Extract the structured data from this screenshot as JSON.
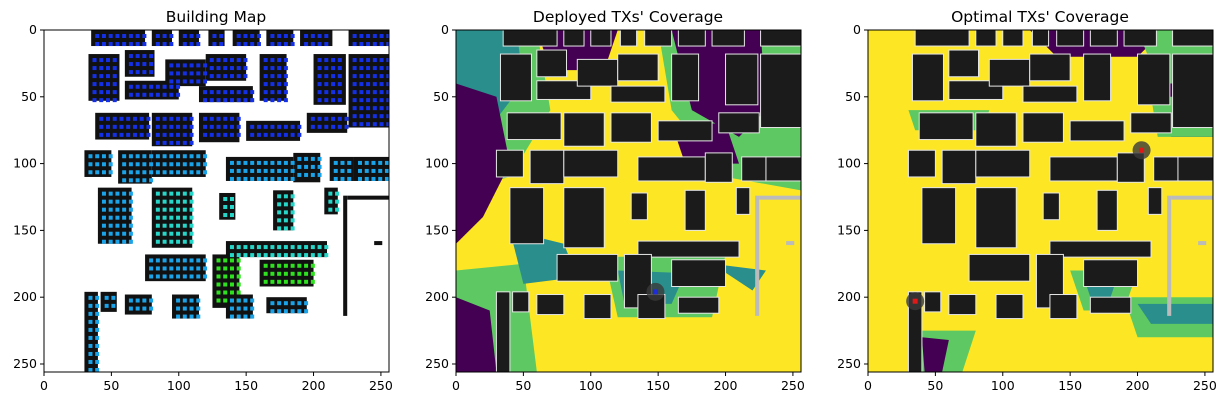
{
  "chart_data": [
    {
      "type": "heatmap",
      "title": "Building Map",
      "x_ticks": [
        0,
        50,
        100,
        150,
        200,
        250
      ],
      "y_ticks": [
        0,
        50,
        100,
        150,
        200,
        250
      ],
      "xlim": [
        0,
        256
      ],
      "ylim": [
        256,
        0
      ],
      "colors": {
        "background": "#ffffff",
        "building": "#111111",
        "pixel_dark_blue": "#1430e6",
        "pixel_light_blue": "#1aa3e8",
        "pixel_cyan": "#26d7c9",
        "pixel_green": "#2ee21f"
      }
    },
    {
      "type": "heatmap",
      "title": "Deployed TXs' Coverage",
      "x_ticks": [
        0,
        50,
        100,
        150,
        200,
        250
      ],
      "y_ticks": [
        0,
        50,
        100,
        150,
        200,
        250
      ],
      "xlim": [
        0,
        256
      ],
      "ylim": [
        256,
        0
      ],
      "colormap": [
        "#440154",
        "#2a8f8c",
        "#5ec962",
        "#fde725"
      ],
      "tx_points": [
        {
          "x": 148,
          "y": 196,
          "color": "#1f2bd6"
        }
      ]
    },
    {
      "type": "heatmap",
      "title": "Optimal TXs' Coverage",
      "x_ticks": [
        0,
        50,
        100,
        150,
        200,
        250
      ],
      "y_ticks": [
        0,
        50,
        100,
        150,
        200,
        250
      ],
      "xlim": [
        0,
        256
      ],
      "ylim": [
        256,
        0
      ],
      "colormap": [
        "#440154",
        "#2a8f8c",
        "#5ec962",
        "#fde725"
      ],
      "tx_points": [
        {
          "x": 35,
          "y": 203,
          "color": "#e01818"
        },
        {
          "x": 203,
          "y": 90,
          "color": "#e01818"
        }
      ]
    }
  ]
}
